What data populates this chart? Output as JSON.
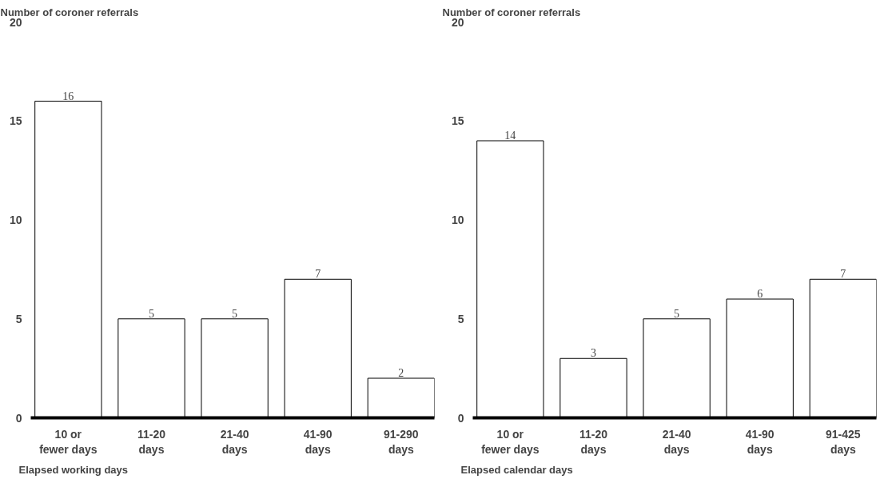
{
  "chart_data": [
    {
      "type": "bar",
      "ylabel": "Number of coroner referrals",
      "xlabel": "Elapsed working days",
      "categories": [
        "10 or\nfewer days",
        "11-20\ndays",
        "21-40\ndays",
        "41-90\ndays",
        "91-290\ndays"
      ],
      "values": [
        16,
        5,
        5,
        7,
        2
      ],
      "color": "#ffffff",
      "ylim": [
        0,
        20
      ],
      "yticks": [
        0,
        5,
        10,
        15,
        20
      ],
      "data_labels": true
    },
    {
      "type": "bar",
      "ylabel": "Number of coroner referrals",
      "xlabel": "Elapsed calendar days",
      "categories": [
        "10 or\nfewer days",
        "11-20\ndays",
        "21-40\ndays",
        "41-90\ndays",
        "91-425\ndays"
      ],
      "values": [
        14,
        3,
        5,
        6,
        7
      ],
      "color": "#ffffff",
      "ylim": [
        0,
        20
      ],
      "yticks": [
        0,
        5,
        10,
        15,
        20
      ],
      "data_labels": true
    }
  ]
}
